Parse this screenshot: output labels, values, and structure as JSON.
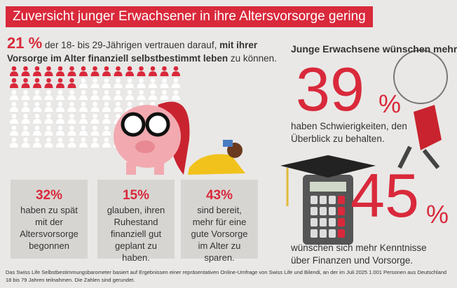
{
  "header": {
    "title": "Zuversicht junger Erwachsener in ihre Altersvorsorge gering"
  },
  "intro": {
    "stat": "21 %",
    "text_before": "der 18- bis 29-Jährigen vertrauen darauf, ",
    "text_bold": "mit ihrer Vorsorge  im Alter finanziell selbstbestimmt leben",
    "text_after": " zu können."
  },
  "people_grid": {
    "highlighted": 21,
    "total": 100
  },
  "boxes": [
    {
      "stat": "32%",
      "text": "haben zu spät mit der Altersvorsorge begonnen"
    },
    {
      "stat": "15%",
      "text": "glauben, ihren Ruhestand finanziell gut geplant zu haben."
    },
    {
      "stat": "43%",
      "text": "sind bereit, mehr für eine gute Vorsorge im Alter zu sparen."
    }
  ],
  "right": {
    "heading": "Junge Erwachsene wünschen mehr",
    "stats": [
      {
        "number": "39",
        "unit": "%",
        "text": "haben Schwierigkeiten, den Überblick zu behalten."
      },
      {
        "number": "45",
        "unit": "%",
        "text": "wünschen sich mehr Kenntnisse über Finanzen und Vorsorge."
      }
    ]
  },
  "footnote": {
    "line1": "Das Swiss Life Selbstbestimmungsbarometer basiert auf Ergebnissen einer repräsentativen Online-Umfrage von Swiss Life und Bilendi, an der im Juli 2025 1.001 Personen aus Deutschland",
    "line2": "18 bis 79 Jahren teilnahmen. Die Zahlen sind gerundet."
  }
}
